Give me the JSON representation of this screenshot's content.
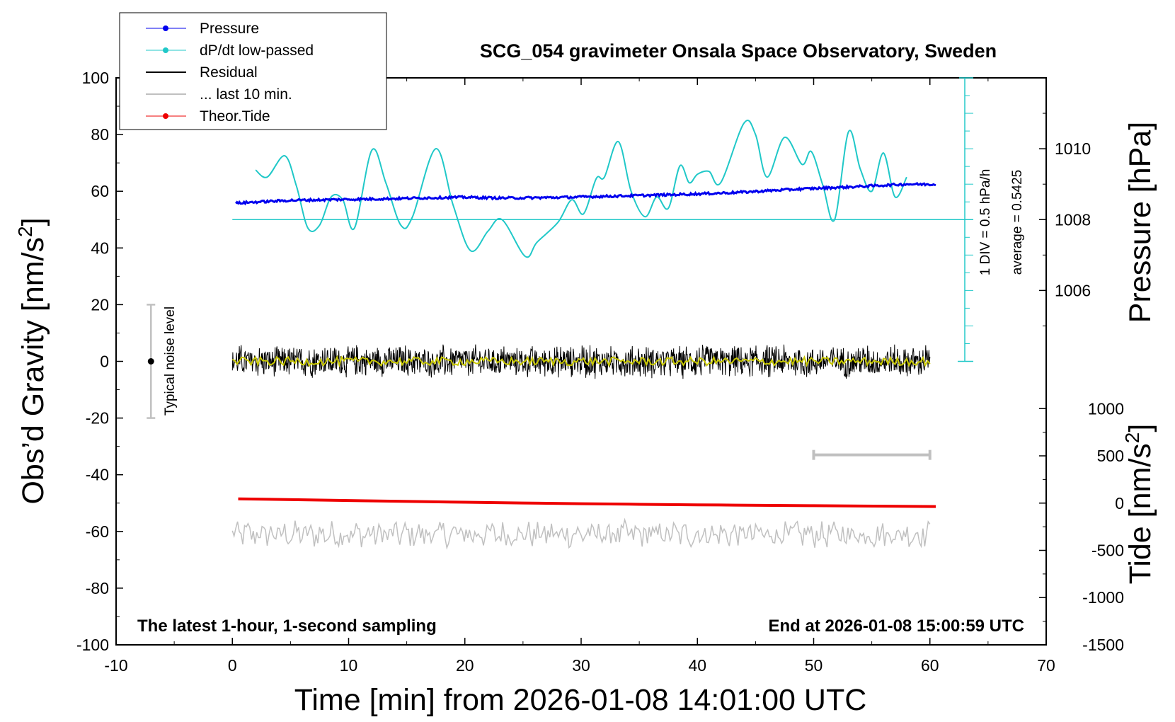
{
  "chart_data": {
    "type": "line",
    "title": "SCG_054 gravimeter Onsala Space Observatory, Sweden",
    "xlabel": "Time [min] from 2026-01-08 14:01:00 UTC",
    "ylabel_left": "Obs’d Gravity [nm/s²]",
    "ylabel_left_base": "Obs’d Gravity [nm/s",
    "ylabel_left_sup": "2",
    "ylabel_left_end": "]",
    "ylabel_right_top": "Pressure [hPa]",
    "ylabel_right_bottom_base": "Tide [nm/s",
    "ylabel_right_bottom_sup": "2",
    "ylabel_right_bottom_end": "]",
    "xlim": [
      -10,
      70
    ],
    "ylim": [
      -100,
      100
    ],
    "x_ticks": [
      "-10",
      "0",
      "10",
      "20",
      "30",
      "40",
      "50",
      "60",
      "70"
    ],
    "x_tick_values": [
      -10,
      0,
      10,
      20,
      30,
      40,
      50,
      60,
      70
    ],
    "y_ticks": [
      "100",
      "80",
      "60",
      "40",
      "20",
      "0",
      "-20",
      "-40",
      "-60",
      "-80",
      "-100"
    ],
    "y_tick_values": [
      100,
      80,
      60,
      40,
      20,
      0,
      -20,
      -40,
      -60,
      -80,
      -100
    ],
    "pressure_axis": {
      "ticks": [
        "1010",
        "1008",
        "1006"
      ],
      "tick_values": [
        1010,
        1008,
        1006
      ],
      "gravity_at_1008": 50,
      "gravity_per_hpa": 12.5
    },
    "tide_axis": {
      "ticks": [
        "1000",
        "500",
        "0",
        "-500",
        "-1000",
        "-1500"
      ],
      "tick_values": [
        1000,
        500,
        0,
        -500,
        -1000,
        -1500
      ],
      "gravity_at_0": -50,
      "gravity_per_unit": 0.0333333
    },
    "legend": [
      {
        "label": "Pressure",
        "color": "#0000ee",
        "marker": true
      },
      {
        "label": "dP/dt low-passed",
        "color": "#20c8c8",
        "marker": true
      },
      {
        "label": "Residual",
        "color": "#000000",
        "marker": false
      },
      {
        "label": "... last 10 min.",
        "color": "#c0c0c0",
        "marker": false
      },
      {
        "label": "Theor.Tide",
        "color": "#ee0000",
        "marker": true
      }
    ],
    "annotations": {
      "left_note": "The latest 1-hour, 1-second sampling",
      "right_note": "End at 2026-01-08 15:00:59 UTC",
      "noise_label": "Typical noise level",
      "noise_bar": {
        "x": -7,
        "y_low": -20,
        "y_high": 20,
        "center": 0
      },
      "div_label": "1 DIV = 0.5 hPa/h",
      "avg_label": "average = 0.5425",
      "dpdt_baseline": 50,
      "dpdt_scale_x": 63,
      "dpdt_scale_range": [
        0,
        100
      ],
      "last10_bar": {
        "x_start": 50,
        "x_end": 60,
        "y": -33
      }
    },
    "series": [
      {
        "name": "Pressure",
        "color": "#0000ee",
        "x": [
          0.3,
          2,
          5,
          8,
          11,
          14,
          17,
          20,
          23,
          26,
          29,
          32,
          35,
          38,
          41,
          44,
          47,
          50,
          53,
          56,
          58,
          60.5
        ],
        "y": [
          55.8,
          56.2,
          56.8,
          57.0,
          57.2,
          57.4,
          57.7,
          57.9,
          57.6,
          57.7,
          57.9,
          58.2,
          58.5,
          58.8,
          59.2,
          59.7,
          60.4,
          61.0,
          61.5,
          62.1,
          62.5,
          62.4
        ]
      },
      {
        "name": "dP/dt low-passed",
        "color": "#20c8c8",
        "x": [
          2,
          3,
          4.5,
          5.5,
          6.5,
          7.5,
          8.5,
          9.5,
          10.5,
          12,
          13.2,
          14.5,
          15.5,
          17.5,
          19,
          20.5,
          22,
          23.2,
          25.2,
          26.2,
          28,
          29.2,
          30.2,
          31.3,
          32,
          33.2,
          34.3,
          35.5,
          36.5,
          37.5,
          38.5,
          39.3,
          40,
          41,
          42,
          44,
          45,
          46,
          47.5,
          49,
          49.8,
          50.8,
          51.8,
          53,
          54,
          55,
          56,
          57,
          58
        ],
        "y": [
          67.5,
          65,
          72.5,
          62,
          47,
          48,
          58,
          57,
          47,
          74.5,
          63,
          48,
          51,
          75,
          55,
          39,
          46,
          50,
          37,
          42,
          49,
          57,
          52,
          64.5,
          65,
          77.5,
          60,
          51,
          58,
          54,
          69,
          63,
          66,
          67,
          63,
          84,
          80,
          65,
          79,
          69.5,
          74,
          62,
          50,
          81,
          68,
          60,
          73.5,
          58,
          65
        ]
      },
      {
        "name": "Residual",
        "color": "#000000",
        "x_start": 0,
        "x_end": 60,
        "center": 0,
        "amplitude": 5.5
      },
      {
        "name": "Residual smoothed",
        "color": "#c8c800",
        "x_start": 0,
        "x_end": 60,
        "center": 0,
        "amplitude": 1.5
      },
      {
        "name": "... last 10 min.",
        "color": "#c0c0c0",
        "x_start": 0,
        "x_end": 60,
        "center": -61,
        "amplitude": 4
      },
      {
        "name": "Theor.Tide",
        "color": "#ee0000",
        "x": [
          0.5,
          10,
          20,
          30,
          40,
          50,
          60.5
        ],
        "y": [
          -48.5,
          -49.1,
          -49.7,
          -50.2,
          -50.6,
          -50.9,
          -51.2
        ]
      }
    ]
  }
}
